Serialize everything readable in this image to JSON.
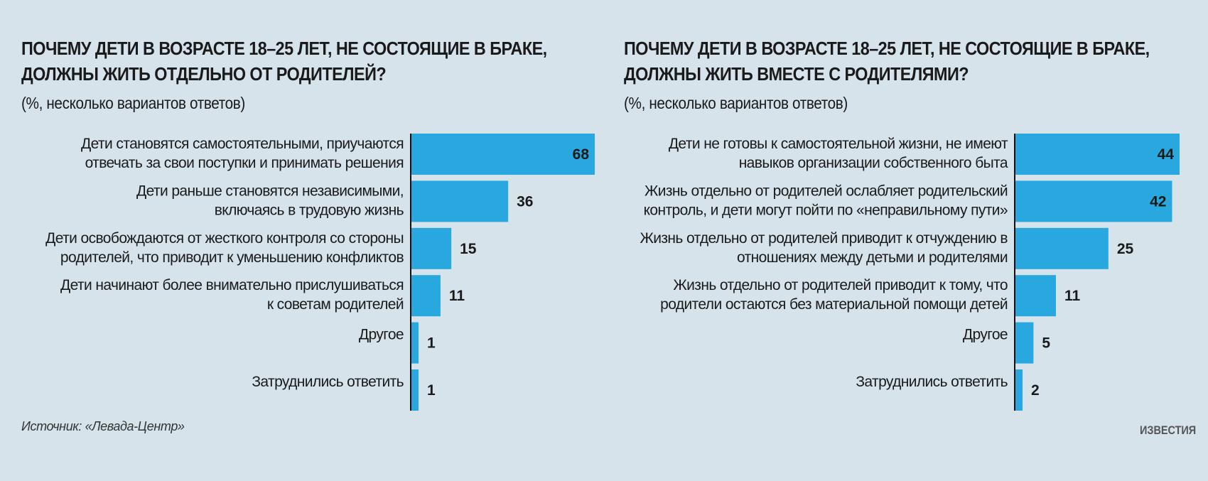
{
  "chart_data": [
    {
      "type": "bar",
      "orientation": "horizontal",
      "title": "ПОЧЕМУ ДЕТИ В ВОЗРАСТЕ 18–25 ЛЕТ, НЕ СОСТОЯЩИЕ В БРАКЕ,\nДОЛЖНЫ ЖИТЬ ОТДЕЛЬНО ОТ РОДИТЕЛЕЙ?",
      "subtitle": "(%, несколько вариантов ответов)",
      "categories": [
        [
          "Дети становятся самостоятельными, приучаются",
          "отвечать за свои поступки и принимать решения"
        ],
        [
          "Дети раньше становятся независимыми,",
          "включаясь в трудовую жизнь"
        ],
        [
          "Дети освобождаются от жесткого контроля со стороны",
          "родителей, что приводит к уменьшению конфликтов"
        ],
        [
          "Дети начинают более внимательно прислушиваться",
          "к советам родителей"
        ],
        [
          "Другое"
        ],
        [
          "Затруднились ответить"
        ]
      ],
      "values": [
        68,
        36,
        15,
        11,
        1,
        1
      ],
      "color": "#29a8e0"
    },
    {
      "type": "bar",
      "orientation": "horizontal",
      "title": "ПОЧЕМУ ДЕТИ В ВОЗРАСТЕ 18–25 ЛЕТ, НЕ СОСТОЯЩИЕ В БРАКЕ,\nДОЛЖНЫ ЖИТЬ ВМЕСТЕ С РОДИТЕЛЯМИ?",
      "subtitle": "(%, несколько вариантов ответов)",
      "categories": [
        [
          "Дети не готовы к самостоятельной жизни, не имеют",
          "навыков организации собственного быта"
        ],
        [
          "Жизнь отдельно от родителей ослабляет родительский",
          "контроль, и дети могут пойти по «неправильному пути»"
        ],
        [
          "Жизнь отдельно от родителей приводит к отчуждению в",
          "отношениях между детьми и родителями"
        ],
        [
          "Жизнь отдельно от родителей приводит к тому, что",
          "родители остаются без материальной помощи детей"
        ],
        [
          "Другое"
        ],
        [
          "Затруднились ответить"
        ]
      ],
      "values": [
        44,
        42,
        25,
        11,
        5,
        2
      ],
      "color": "#29a8e0"
    }
  ],
  "source": "Источник: «Левада-Центр»",
  "logo": "ИЗВЕСТИЯ",
  "background": "#d6e3ea"
}
